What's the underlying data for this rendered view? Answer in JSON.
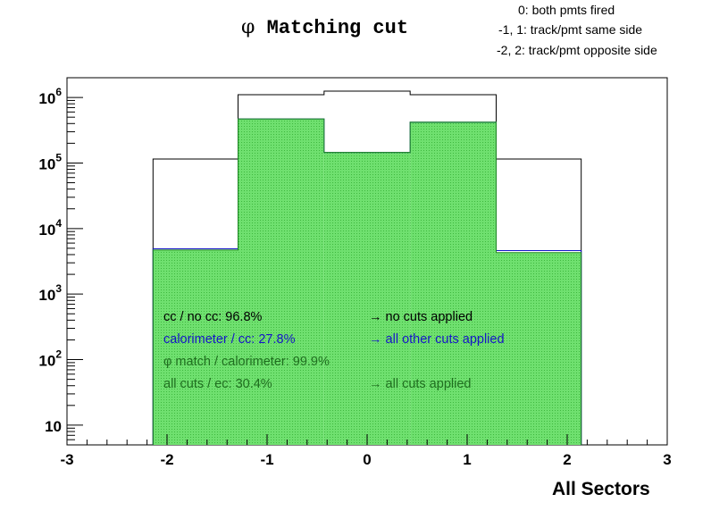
{
  "header": {
    "title_symbol": "φ",
    "title_text": "Matching cut",
    "legend": [
      "0: both pmts fired",
      "-1, 1: track/pmt same side",
      "-2, 2: track/pmt opposite side"
    ]
  },
  "annotations": [
    {
      "left": "cc / no cc:  96.8%",
      "right": "→ no cuts applied",
      "color": "#000000"
    },
    {
      "left": "calorimeter / cc:  27.8%",
      "right": "→ all other cuts applied",
      "color": "#1515c8"
    },
    {
      "left": "φ match / calorimeter: 99.9%",
      "right": "",
      "color": "#1f6e1f"
    },
    {
      "left": "all cuts / ec:  30.4%",
      "right": "→ all cuts applied",
      "color": "#1f6e1f"
    }
  ],
  "chart_data": {
    "type": "bar",
    "xlabel": "All Sectors",
    "ylabel": "",
    "xlim": [
      -3,
      3
    ],
    "ylim": [
      5,
      2000000
    ],
    "yscale": "log",
    "xticks": [
      -3,
      -2,
      -1,
      0,
      1,
      2,
      3
    ],
    "xtick_labels": [
      "-3",
      "-2",
      "-1",
      "0",
      "1",
      "2",
      "3"
    ],
    "yticks": [
      10,
      100,
      1000,
      10000,
      100000,
      1000000
    ],
    "ytick_labels": [
      {
        "base": "10",
        "exp": ""
      },
      {
        "base": "10",
        "exp": "2"
      },
      {
        "base": "10",
        "exp": "3"
      },
      {
        "base": "10",
        "exp": "4"
      },
      {
        "base": "10",
        "exp": "5"
      },
      {
        "base": "10",
        "exp": "6"
      }
    ],
    "bin_edges": [
      -2.14,
      -1.29,
      -0.43,
      0.43,
      1.29,
      2.14
    ],
    "series": [
      {
        "name": "no cuts applied",
        "values": [
          115000,
          1100000,
          1250000,
          1100000,
          115000
        ],
        "color": "#000000",
        "fill": "none"
      },
      {
        "name": "all other cuts applied",
        "values": [
          4900,
          470000,
          145000,
          420000,
          4600
        ],
        "color": "#1515c8",
        "fill": "none"
      },
      {
        "name": "all cuts applied",
        "values": [
          4700,
          470000,
          145000,
          420000,
          4300
        ],
        "color": "#1f8a1f",
        "fill": "#66dd66"
      }
    ]
  }
}
